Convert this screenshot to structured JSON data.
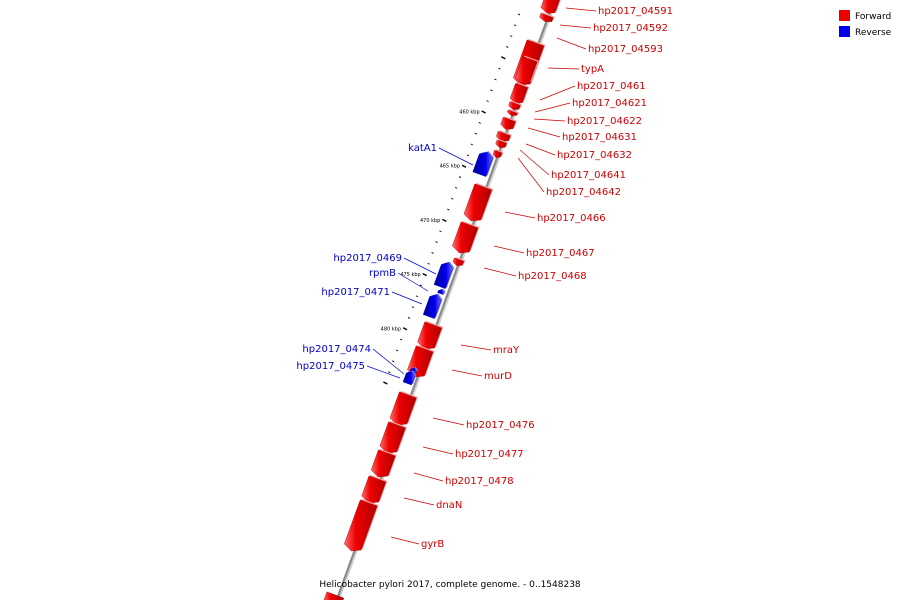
{
  "caption": "Helicobacter pylori 2017, complete genome. - 0..1548238",
  "legend": {
    "forward_label": "Forward",
    "reverse_label": "Reverse",
    "forward_color": "#ee0000",
    "reverse_color": "#0000ee"
  },
  "ticks": [
    {
      "kbp": 460,
      "label": "460 kbp"
    },
    {
      "kbp": 465,
      "label": "465 kbp"
    },
    {
      "kbp": 470,
      "label": "470 kbp"
    },
    {
      "kbp": 475,
      "label": "475 kbp"
    },
    {
      "kbp": 480,
      "label": "480 kbp"
    }
  ],
  "genes": [
    {
      "name": "hp2017_04591",
      "strand": "forward"
    },
    {
      "name": "hp2017_04592",
      "strand": "forward"
    },
    {
      "name": "hp2017_04593",
      "strand": "forward"
    },
    {
      "name": "typA",
      "strand": "forward"
    },
    {
      "name": "hp2017_0461",
      "strand": "forward"
    },
    {
      "name": "hp2017_04621",
      "strand": "forward"
    },
    {
      "name": "hp2017_04622",
      "strand": "forward"
    },
    {
      "name": "hp2017_04631",
      "strand": "forward"
    },
    {
      "name": "hp2017_04632",
      "strand": "forward"
    },
    {
      "name": "hp2017_04641",
      "strand": "forward"
    },
    {
      "name": "hp2017_04642",
      "strand": "forward"
    },
    {
      "name": "katA1",
      "strand": "reverse"
    },
    {
      "name": "hp2017_0466",
      "strand": "forward"
    },
    {
      "name": "hp2017_0467",
      "strand": "forward"
    },
    {
      "name": "hp2017_0468",
      "strand": "forward"
    },
    {
      "name": "hp2017_0469",
      "strand": "reverse"
    },
    {
      "name": "rpmB",
      "strand": "reverse"
    },
    {
      "name": "hp2017_0471",
      "strand": "reverse"
    },
    {
      "name": "mraY",
      "strand": "forward"
    },
    {
      "name": "murD",
      "strand": "forward"
    },
    {
      "name": "hp2017_0474",
      "strand": "reverse"
    },
    {
      "name": "hp2017_0475",
      "strand": "reverse"
    },
    {
      "name": "hp2017_0476",
      "strand": "forward"
    },
    {
      "name": "hp2017_0477",
      "strand": "forward"
    },
    {
      "name": "hp2017_0478",
      "strand": "forward"
    },
    {
      "name": "dnaN",
      "strand": "forward"
    },
    {
      "name": "gyrB",
      "strand": "forward"
    }
  ]
}
